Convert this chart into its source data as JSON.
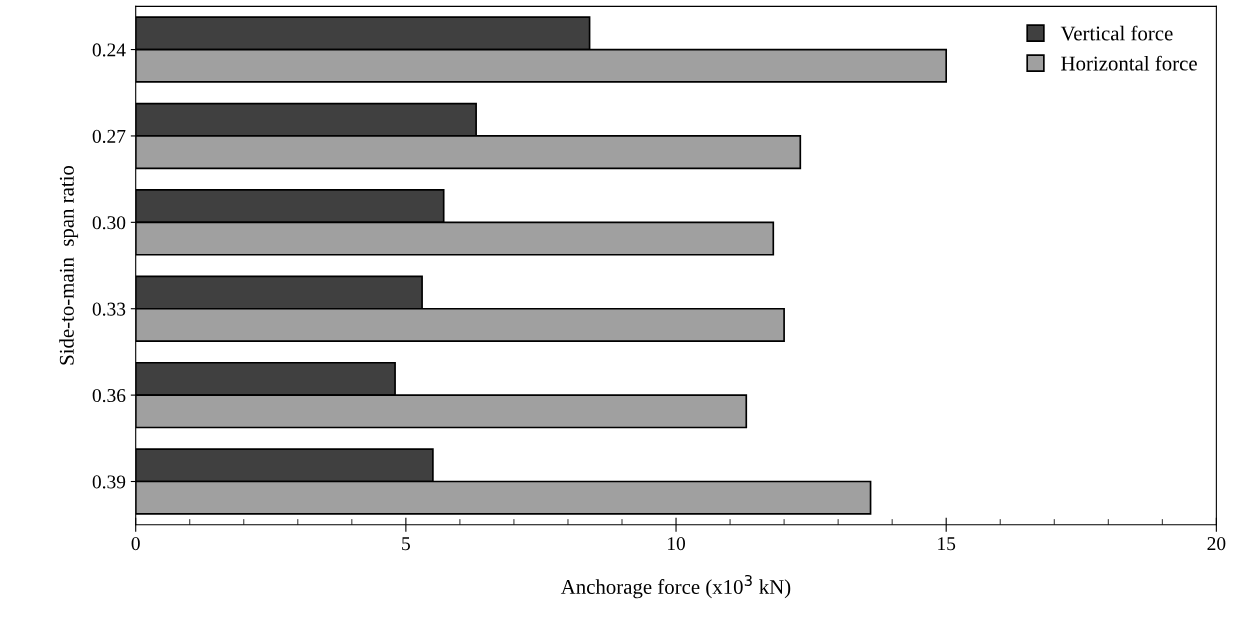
{
  "chart_data": {
    "type": "bar",
    "orientation": "horizontal",
    "xlabel": "Anchorage force (x10$^{3}$ kN)",
    "ylabel": "Side-to-main  span ratio",
    "categories": [
      "0.24",
      "0.27",
      "0.30",
      "0.33",
      "0.36",
      "0.39"
    ],
    "series": [
      {
        "name": "Vertical force",
        "color": "#404040",
        "values": [
          8.4,
          6.3,
          5.7,
          5.3,
          4.8,
          5.5
        ]
      },
      {
        "name": "Horizontal force",
        "color": "#a0a0a0",
        "values": [
          15.0,
          12.3,
          11.8,
          12.0,
          11.3,
          13.6
        ]
      }
    ],
    "xlim": [
      0,
      20
    ],
    "xticks": [
      0,
      5,
      10,
      15,
      20
    ],
    "legend": "top right",
    "grid": false
  }
}
